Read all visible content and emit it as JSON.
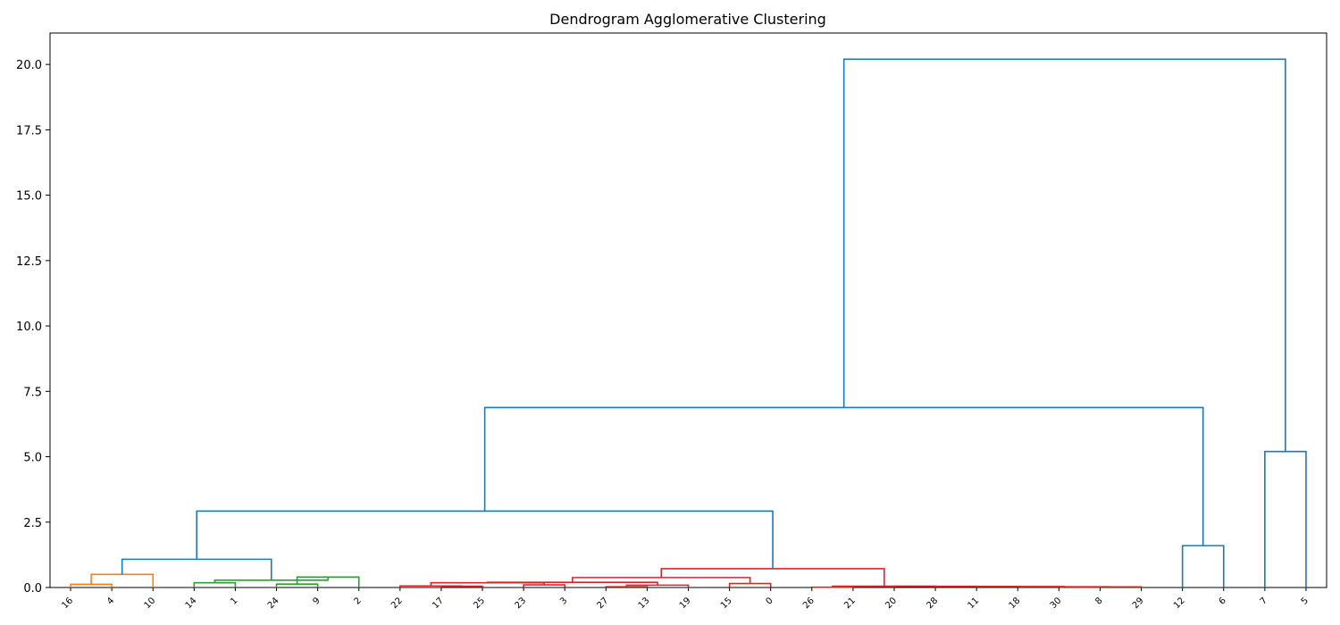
{
  "chart_data": {
    "type": "dendrogram",
    "title": "Dendrogram Agglomerative Clustering",
    "xlabel": "",
    "ylabel": "",
    "ylim": [
      0,
      21.2
    ],
    "y_ticks": [
      "0.0",
      "2.5",
      "5.0",
      "7.5",
      "10.0",
      "12.5",
      "15.0",
      "17.5",
      "20.0"
    ],
    "y_tick_values": [
      0,
      2.5,
      5,
      7.5,
      10,
      12.5,
      15,
      17.5,
      20
    ],
    "leaves": [
      "16",
      "4",
      "10",
      "14",
      "1",
      "24",
      "9",
      "2",
      "22",
      "17",
      "25",
      "23",
      "3",
      "27",
      "13",
      "19",
      "15",
      "0",
      "26",
      "21",
      "20",
      "28",
      "11",
      "18",
      "30",
      "8",
      "29",
      "12",
      "6",
      "7",
      "5"
    ],
    "colors": {
      "C0": "#1f77b4",
      "C1": "#ff7f0e",
      "C2": "#2ca02c",
      "C3": "#d62728"
    },
    "links": [
      {
        "i": 0,
        "j": 1,
        "h": 0.12,
        "color": "C1"
      },
      {
        "i": 31,
        "j": 2,
        "h": 0.5,
        "color": "C1"
      },
      {
        "i": 3,
        "j": 4,
        "h": 0.18,
        "color": "C2"
      },
      {
        "i": 5,
        "j": 6,
        "h": 0.13,
        "color": "C2"
      },
      {
        "i": 34,
        "j": 7,
        "h": 0.4,
        "color": "C2"
      },
      {
        "i": 33,
        "j": 35,
        "h": 0.28,
        "color": "C2"
      },
      {
        "i": 32,
        "j": 36,
        "h": 1.08,
        "color": "C0"
      },
      {
        "i": 9,
        "j": 10,
        "h": 0.05,
        "color": "C3"
      },
      {
        "i": 8,
        "j": 38,
        "h": 0.06,
        "color": "C3"
      },
      {
        "i": 11,
        "j": 12,
        "h": 0.1,
        "color": "C3"
      },
      {
        "i": 39,
        "j": 40,
        "h": 0.18,
        "color": "C3"
      },
      {
        "i": 13,
        "j": 14,
        "h": 0.03,
        "color": "C3"
      },
      {
        "i": 42,
        "j": 15,
        "h": 0.09,
        "color": "C3"
      },
      {
        "i": 41,
        "j": 43,
        "h": 0.2,
        "color": "C3"
      },
      {
        "i": 16,
        "j": 17,
        "h": 0.15,
        "color": "C3"
      },
      {
        "i": 44,
        "j": 45,
        "h": 0.38,
        "color": "C3"
      },
      {
        "i": 18,
        "j": 19,
        "h": 0.01,
        "color": "C3"
      },
      {
        "i": 24,
        "j": 25,
        "h": 0.02,
        "color": "C3"
      },
      {
        "i": 48,
        "j": 26,
        "h": 0.025,
        "color": "C3"
      },
      {
        "i": 23,
        "j": 49,
        "h": 0.03,
        "color": "C3"
      },
      {
        "i": 22,
        "j": 50,
        "h": 0.035,
        "color": "C3"
      },
      {
        "i": 21,
        "j": 51,
        "h": 0.04,
        "color": "C3"
      },
      {
        "i": 20,
        "j": 52,
        "h": 0.045,
        "color": "C3"
      },
      {
        "i": 47,
        "j": 53,
        "h": 0.05,
        "color": "C3"
      },
      {
        "i": 46,
        "j": 54,
        "h": 0.72,
        "color": "C3"
      },
      {
        "i": 37,
        "j": 55,
        "h": 2.92,
        "color": "C0"
      },
      {
        "i": 27,
        "j": 28,
        "h": 1.6,
        "color": "C0"
      },
      {
        "i": 56,
        "j": 57,
        "h": 6.88,
        "color": "C0"
      },
      {
        "i": 29,
        "j": 30,
        "h": 5.2,
        "color": "C0"
      },
      {
        "i": 58,
        "j": 59,
        "h": 20.2,
        "color": "C0"
      }
    ]
  }
}
